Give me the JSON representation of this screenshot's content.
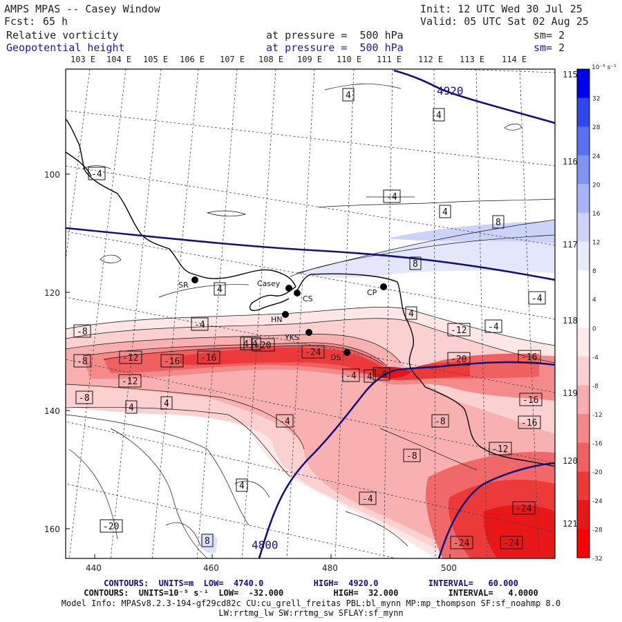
{
  "header": {
    "title": "AMPS MPAS -- Casey Window",
    "init": "Init: 12 UTC Wed 30 Jul 25",
    "fcst_label": "Fcst:",
    "fcst_value": "65 h",
    "valid": "Valid: 05 UTC Sat 02 Aug 25",
    "field1_name": "Relative vorticity",
    "field1_level": "at pressure =  500 hPa",
    "field1_sm": "sm= 2",
    "field2_name": "Geopotential height",
    "field2_level": "at pressure =  500 hPa",
    "field2_sm": "sm= 2"
  },
  "lon_labels_top": [
    "103 E",
    "104 E",
    "105 E",
    "106 E",
    "107 E",
    "108 E",
    "109 E",
    "110 E",
    "111 E",
    "112 E",
    "113 E",
    "114 E"
  ],
  "lon_labels_right": [
    "115 E",
    "116 E",
    "117 E",
    "118 E",
    "119 E",
    "120 E",
    "121 E"
  ],
  "y_ticks": [
    "100",
    "120",
    "140",
    "160"
  ],
  "x_ticks": [
    "440",
    "460",
    "480",
    "500"
  ],
  "stations": [
    {
      "id": "SR",
      "label": "SR"
    },
    {
      "id": "Casey",
      "label": "Casey"
    },
    {
      "id": "CS",
      "label": "CS"
    },
    {
      "id": "CP",
      "label": "CP"
    },
    {
      "id": "HN",
      "label": "HN"
    },
    {
      "id": "YKS",
      "label": "YKS"
    },
    {
      "id": "DS",
      "label": "DS"
    }
  ],
  "height_contour_labels": [
    "4920",
    "4800"
  ],
  "vorticity_labels": [
    "4",
    "4",
    "-4",
    "-4",
    "4",
    "8",
    "8",
    "4",
    "-4",
    "4",
    "-4",
    "-8",
    "-4",
    "-12",
    "-4",
    "-20",
    "-8",
    "-12",
    "-16",
    "-16",
    "-24",
    "-24",
    "-20",
    "-16",
    "-12",
    "-8",
    "-4",
    "4",
    "4",
    "-4",
    "-8",
    "-16",
    "-16",
    "-12",
    "-8",
    "4",
    "-4",
    "8",
    "-24",
    "-24",
    "-20",
    "4",
    "4",
    "-8"
  ],
  "colorbar": {
    "units": "10⁻⁵ s⁻¹",
    "labels": [
      "32",
      "28",
      "24",
      "20",
      "16",
      "12",
      "8",
      "4",
      "0",
      "-4",
      "-8",
      "-12",
      "-16",
      "-20",
      "-24",
      "-28",
      "-32"
    ],
    "colors": [
      "#0000ee",
      "#2e46f0",
      "#5a70f2",
      "#8094f4",
      "#a8b4f6",
      "#ccd3f8",
      "#e8ebfb",
      "#ffffff",
      "#ffffff",
      "#fdeaea",
      "#fbd0d0",
      "#f8aeae",
      "#f48888",
      "#f06060",
      "#ec3a3a",
      "#e81818",
      "#ff0000"
    ]
  },
  "footer": {
    "line1": "CONTOURS:  UNITS=m  LOW=  4740.0          HIGH=  4920.0          INTERVAL=   60.000",
    "line2": "CONTOURS:  UNITS=10⁻⁵ s⁻¹  LOW=  -32.000          HIGH=  32.000          INTERVAL=   4.0000",
    "line3": "Model Info: MPASv8.2.3-194-gf29cd82c CU:cu_grell_freitas PBL:bl_mynn MP:mp_thompson SF:sf_noahmp 8.0",
    "line4": "LW:rrtmg_lw SW:rrtmg_sw SFLAY:sf_mynn"
  },
  "colors": {
    "height_contour": "#101080",
    "coast": "#000000",
    "text_dark": "#222222",
    "text_navy": "#1a1a9a"
  }
}
